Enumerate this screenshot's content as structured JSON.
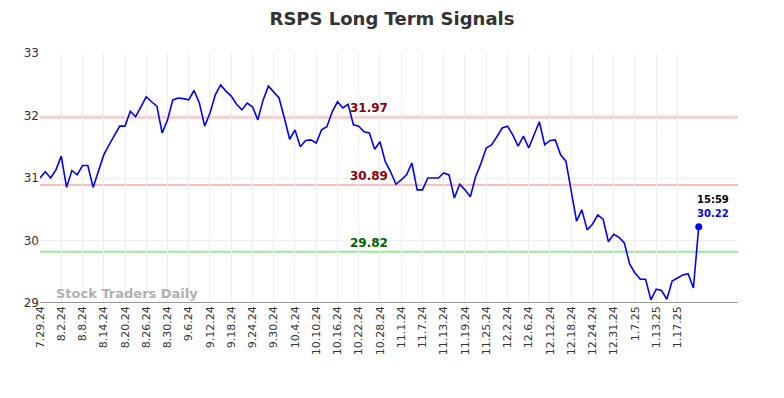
{
  "chart_data": {
    "type": "line",
    "title": "RSPS Long Term Signals",
    "categories": [
      "7.29.24",
      null,
      null,
      null,
      "8.2.24",
      null,
      null,
      null,
      "8.8.24",
      null,
      null,
      null,
      "8.14.24",
      null,
      null,
      null,
      "8.20.24",
      null,
      null,
      null,
      "8.26.24",
      null,
      null,
      null,
      "8.30.24",
      null,
      null,
      null,
      "9.6.24",
      null,
      null,
      null,
      "9.12.24",
      null,
      null,
      null,
      "9.18.24",
      null,
      null,
      null,
      "9.24.24",
      null,
      null,
      null,
      "9.30.24",
      null,
      null,
      null,
      "10.4.24",
      null,
      null,
      null,
      "10.10.24",
      null,
      null,
      null,
      "10.16.24",
      null,
      null,
      null,
      "10.22.24",
      null,
      null,
      null,
      "10.28.24",
      null,
      null,
      null,
      "11.1.24",
      null,
      null,
      null,
      "11.7.24",
      null,
      null,
      null,
      "11.13.24",
      null,
      null,
      null,
      "11.19.24",
      null,
      null,
      null,
      "11.25.24",
      null,
      null,
      null,
      "12.2.24",
      null,
      null,
      null,
      "12.6.24",
      null,
      null,
      null,
      "12.12.24",
      null,
      null,
      null,
      "12.18.24",
      null,
      null,
      null,
      "12.24.24",
      null,
      null,
      null,
      "12.31.24",
      null,
      null,
      null,
      "1.7.25",
      null,
      null,
      null,
      "1.13.25",
      null,
      null,
      null,
      "1.17.25",
      null,
      null,
      null,
      null
    ],
    "values": [
      31.0,
      31.1,
      31.0,
      31.13,
      31.35,
      30.85,
      31.12,
      31.05,
      31.2,
      31.2,
      30.85,
      31.12,
      31.37,
      31.53,
      31.67,
      31.83,
      31.83,
      32.07,
      31.98,
      32.15,
      32.3,
      32.22,
      32.15,
      31.72,
      31.93,
      32.25,
      32.28,
      32.27,
      32.25,
      32.4,
      32.2,
      31.83,
      32.04,
      32.33,
      32.49,
      32.39,
      32.31,
      32.18,
      32.09,
      32.2,
      32.14,
      31.93,
      32.25,
      32.47,
      32.38,
      32.28,
      31.96,
      31.62,
      31.77,
      31.5,
      31.6,
      31.61,
      31.56,
      31.77,
      31.82,
      32.06,
      32.22,
      32.12,
      32.18,
      31.85,
      31.83,
      31.74,
      31.72,
      31.46,
      31.58,
      31.26,
      31.1,
      30.9,
      30.97,
      31.05,
      31.24,
      30.81,
      30.81,
      31.0,
      31.0,
      31.0,
      31.08,
      31.05,
      30.68,
      30.9,
      30.81,
      30.7,
      31.02,
      31.23,
      31.48,
      31.53,
      31.66,
      31.8,
      31.83,
      31.69,
      31.51,
      31.67,
      31.48,
      31.69,
      31.9,
      31.53,
      31.6,
      31.61,
      31.37,
      31.27,
      30.76,
      30.31,
      30.49,
      30.17,
      30.26,
      30.41,
      30.34,
      29.98,
      30.1,
      30.05,
      29.96,
      29.62,
      29.48,
      29.38,
      29.38,
      29.05,
      29.22,
      29.2,
      29.06,
      29.35,
      29.4,
      29.45,
      29.47,
      29.24,
      30.22
    ],
    "color": "#0000ff",
    "ylim": [
      29,
      33
    ],
    "yticks": [
      29,
      30,
      31,
      32,
      33
    ],
    "grid": true,
    "reference_lines": [
      {
        "value": 31.97,
        "label": "31.97",
        "color": "#8b0000"
      },
      {
        "value": 30.89,
        "label": "30.89",
        "color": "#8b0000"
      },
      {
        "value": 29.82,
        "label": "29.82",
        "color": "#006400"
      }
    ],
    "last_point": {
      "time": "15:59",
      "label": "30.22"
    },
    "watermark": "Stock Traders Daily"
  }
}
